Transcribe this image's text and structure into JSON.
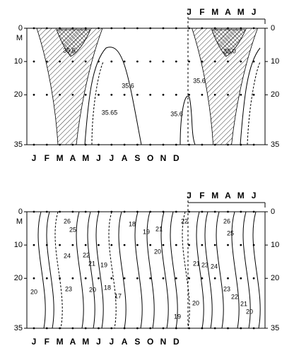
{
  "panels": [
    {
      "months_top": [
        "J",
        "F",
        "M",
        "A",
        "M",
        "J"
      ],
      "months_bottom": [
        "J",
        "F",
        "M",
        "A",
        "M",
        "J",
        "J",
        "A",
        "S",
        "O",
        "N",
        "D"
      ],
      "depth_ticks": [
        0,
        10,
        20,
        35
      ],
      "depth_unit": "M",
      "contour_labels": [
        35.6,
        35.6,
        35.65,
        35.6,
        35.6,
        {
          "value": 35,
          "label": "35.0"
        }
      ]
    },
    {
      "months_top": [
        "J",
        "F",
        "M",
        "A",
        "M",
        "J"
      ],
      "months_bottom": [
        "J",
        "F",
        "M",
        "A",
        "M",
        "J",
        "J",
        "A",
        "S",
        "O",
        "N",
        "D"
      ],
      "depth_ticks": [
        0,
        10,
        20,
        35
      ],
      "depth_unit": "M",
      "contour_labels": [
        26,
        25,
        24,
        22,
        21,
        19,
        23,
        20,
        18,
        17,
        20,
        18,
        19,
        21,
        22,
        20,
        21,
        23,
        24,
        26,
        25,
        23,
        22,
        21,
        20,
        20,
        19
      ]
    }
  ]
}
